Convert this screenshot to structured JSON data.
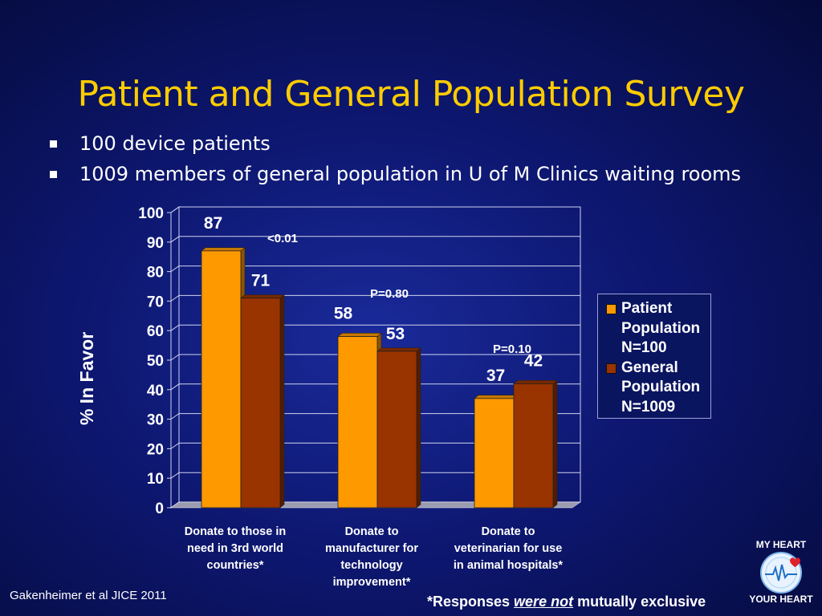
{
  "slide": {
    "title": "Patient and General Population Survey",
    "bullets": [
      "100 device patients",
      "1009 members of general population in U of M Clinics waiting rooms"
    ],
    "citation": "Gakenheimer et al JICE 2011",
    "footnote": {
      "prefix": "*Responses ",
      "emphasis": "were not",
      "suffix": " mutually exclusive"
    },
    "logo": {
      "top_text": "MY HEART",
      "bottom_text": "YOUR HEART"
    }
  },
  "colors": {
    "patient": "#ff9900",
    "general": "#993300",
    "title": "#ffcc00",
    "grid": "#cfd3ee",
    "floor": "#9a9ab0"
  },
  "chart_data": {
    "type": "bar",
    "ylabel": "% In Favor",
    "ylim": [
      0,
      100
    ],
    "yticks": [
      0,
      10,
      20,
      30,
      40,
      50,
      60,
      70,
      80,
      90,
      100
    ],
    "grid": true,
    "categories": [
      [
        "Donate to those in",
        "need in 3rd world",
        "countries*"
      ],
      [
        "Donate to",
        "manufacturer for",
        "technology",
        "improvement*"
      ],
      [
        "Donate to",
        "veterinarian for use",
        "in animal hospitals*"
      ]
    ],
    "series": [
      {
        "name": "Patient\nPopulation\nN=100",
        "values": [
          87,
          58,
          37
        ]
      },
      {
        "name": "General\nPopulation\nN=1009",
        "values": [
          71,
          53,
          42
        ]
      }
    ],
    "p_values": [
      "<0.01",
      "P=0.80",
      "P=0.10"
    ],
    "legend_position": "right"
  }
}
